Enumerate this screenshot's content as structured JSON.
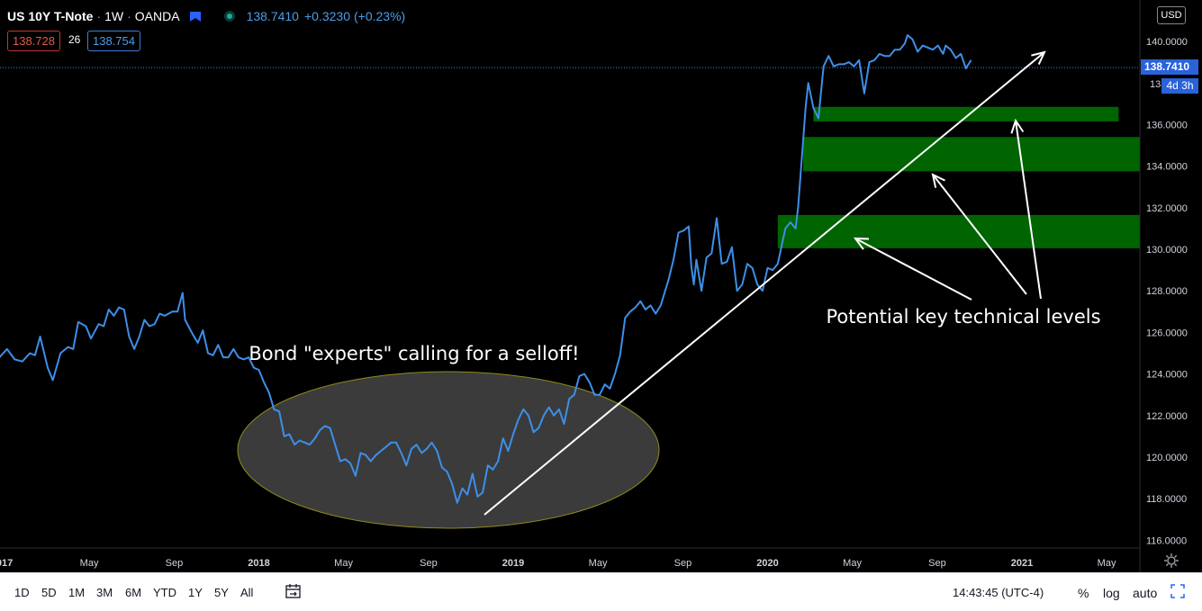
{
  "header": {
    "symbol": "US 10Y T-Note",
    "interval": "1W",
    "source": "OANDA",
    "last": "138.7410",
    "change": "+0.3230",
    "change_pct": "(+0.23%)",
    "sell": "138.728",
    "spread": "26",
    "buy": "138.754",
    "currency": "USD"
  },
  "price_scale": {
    "last_tag": "138.7410",
    "countdown": "4d 3h",
    "partial_label": "138"
  },
  "colors": {
    "line": "#3d8fe8",
    "zone": "#006400",
    "ellipse_fill": "#3b3b3b",
    "ellipse_stroke": "#8e8a1d",
    "arrow": "#ffffff"
  },
  "annotations": {
    "ellipse_text": "Bond \"experts\" calling for a selloff!",
    "levels_text": "Potential key technical levels"
  },
  "bottom_bar": {
    "timeframes": [
      "1D",
      "5D",
      "1M",
      "3M",
      "6M",
      "YTD",
      "1Y",
      "5Y",
      "All"
    ],
    "time": "14:43:45 (UTC-4)",
    "pct": "%",
    "log": "log",
    "auto": "auto"
  },
  "chart_data": {
    "type": "line",
    "title": "US 10Y T-Note · 1W · OANDA",
    "y_range": [
      115.5,
      141.5
    ],
    "y_ticks": [
      116,
      118,
      120,
      122,
      124,
      126,
      128,
      130,
      132,
      134,
      136,
      140
    ],
    "y_tick_labels": [
      "116.0000",
      "118.0000",
      "120.0000",
      "122.0000",
      "124.0000",
      "126.0000",
      "128.0000",
      "130.0000",
      "132.0000",
      "134.0000",
      "136.0000",
      "140.0000"
    ],
    "x_ticks": [
      {
        "t": 2017.0,
        "label": "017",
        "bold": true
      },
      {
        "t": 2017.333,
        "label": "May",
        "bold": false
      },
      {
        "t": 2017.667,
        "label": "Sep",
        "bold": false
      },
      {
        "t": 2018.0,
        "label": "2018",
        "bold": true
      },
      {
        "t": 2018.333,
        "label": "May",
        "bold": false
      },
      {
        "t": 2018.667,
        "label": "Sep",
        "bold": false
      },
      {
        "t": 2019.0,
        "label": "2019",
        "bold": true
      },
      {
        "t": 2019.333,
        "label": "May",
        "bold": false
      },
      {
        "t": 2019.667,
        "label": "Sep",
        "bold": false
      },
      {
        "t": 2020.0,
        "label": "2020",
        "bold": true
      },
      {
        "t": 2020.333,
        "label": "May",
        "bold": false
      },
      {
        "t": 2020.667,
        "label": "Sep",
        "bold": false
      },
      {
        "t": 2021.0,
        "label": "2021",
        "bold": true
      },
      {
        "t": 2021.333,
        "label": "May",
        "bold": false
      }
    ],
    "series": [
      {
        "points": [
          [
            2016.98,
            124.8
          ],
          [
            2017.01,
            125.2
          ],
          [
            2017.04,
            124.7
          ],
          [
            2017.07,
            124.6
          ],
          [
            2017.1,
            125.0
          ],
          [
            2017.12,
            124.9
          ],
          [
            2017.14,
            125.8
          ],
          [
            2017.17,
            124.3
          ],
          [
            2017.19,
            123.7
          ],
          [
            2017.22,
            125.0
          ],
          [
            2017.25,
            125.3
          ],
          [
            2017.27,
            125.2
          ],
          [
            2017.29,
            126.5
          ],
          [
            2017.32,
            126.3
          ],
          [
            2017.34,
            125.7
          ],
          [
            2017.37,
            126.4
          ],
          [
            2017.39,
            126.3
          ],
          [
            2017.41,
            127.1
          ],
          [
            2017.43,
            126.8
          ],
          [
            2017.45,
            127.2
          ],
          [
            2017.47,
            127.1
          ],
          [
            2017.49,
            125.8
          ],
          [
            2017.51,
            125.2
          ],
          [
            2017.53,
            125.8
          ],
          [
            2017.55,
            126.6
          ],
          [
            2017.57,
            126.3
          ],
          [
            2017.59,
            126.4
          ],
          [
            2017.61,
            126.9
          ],
          [
            2017.63,
            126.8
          ],
          [
            2017.66,
            127.0
          ],
          [
            2017.68,
            127.0
          ],
          [
            2017.7,
            127.9
          ],
          [
            2017.71,
            126.6
          ],
          [
            2017.74,
            125.9
          ],
          [
            2017.76,
            125.5
          ],
          [
            2017.78,
            126.1
          ],
          [
            2017.8,
            125.0
          ],
          [
            2017.82,
            124.9
          ],
          [
            2017.84,
            125.4
          ],
          [
            2017.86,
            124.8
          ],
          [
            2017.88,
            124.8
          ],
          [
            2017.9,
            125.2
          ],
          [
            2017.92,
            124.8
          ],
          [
            2017.94,
            124.7
          ],
          [
            2017.96,
            124.8
          ],
          [
            2017.98,
            124.3
          ],
          [
            2018.0,
            124.2
          ],
          [
            2018.02,
            123.6
          ],
          [
            2018.04,
            123.1
          ],
          [
            2018.06,
            122.3
          ],
          [
            2018.08,
            122.2
          ],
          [
            2018.1,
            121.0
          ],
          [
            2018.12,
            121.1
          ],
          [
            2018.14,
            120.6
          ],
          [
            2018.16,
            120.8
          ],
          [
            2018.18,
            120.7
          ],
          [
            2018.2,
            120.6
          ],
          [
            2018.22,
            120.9
          ],
          [
            2018.24,
            121.3
          ],
          [
            2018.26,
            121.5
          ],
          [
            2018.28,
            121.4
          ],
          [
            2018.3,
            120.6
          ],
          [
            2018.32,
            119.8
          ],
          [
            2018.34,
            119.9
          ],
          [
            2018.36,
            119.7
          ],
          [
            2018.38,
            119.1
          ],
          [
            2018.4,
            120.2
          ],
          [
            2018.42,
            120.1
          ],
          [
            2018.44,
            119.8
          ],
          [
            2018.46,
            120.1
          ],
          [
            2018.48,
            120.3
          ],
          [
            2018.5,
            120.5
          ],
          [
            2018.52,
            120.7
          ],
          [
            2018.54,
            120.7
          ],
          [
            2018.56,
            120.2
          ],
          [
            2018.58,
            119.6
          ],
          [
            2018.6,
            120.4
          ],
          [
            2018.62,
            120.6
          ],
          [
            2018.64,
            120.2
          ],
          [
            2018.66,
            120.4
          ],
          [
            2018.68,
            120.7
          ],
          [
            2018.7,
            120.3
          ],
          [
            2018.72,
            119.5
          ],
          [
            2018.74,
            119.3
          ],
          [
            2018.76,
            118.7
          ],
          [
            2018.78,
            117.8
          ],
          [
            2018.8,
            118.5
          ],
          [
            2018.82,
            118.2
          ],
          [
            2018.84,
            119.2
          ],
          [
            2018.86,
            118.1
          ],
          [
            2018.88,
            118.3
          ],
          [
            2018.9,
            119.6
          ],
          [
            2018.92,
            119.4
          ],
          [
            2018.94,
            119.8
          ],
          [
            2018.96,
            120.9
          ],
          [
            2018.98,
            120.3
          ],
          [
            2019.0,
            121.1
          ],
          [
            2019.02,
            121.8
          ],
          [
            2019.04,
            122.3
          ],
          [
            2019.06,
            122.0
          ],
          [
            2019.08,
            121.2
          ],
          [
            2019.1,
            121.4
          ],
          [
            2019.12,
            122.0
          ],
          [
            2019.14,
            122.4
          ],
          [
            2019.16,
            122.0
          ],
          [
            2019.18,
            122.3
          ],
          [
            2019.2,
            121.6
          ],
          [
            2019.22,
            122.8
          ],
          [
            2019.24,
            123.0
          ],
          [
            2019.26,
            123.9
          ],
          [
            2019.28,
            124.0
          ],
          [
            2019.3,
            123.6
          ],
          [
            2019.32,
            123.0
          ],
          [
            2019.34,
            123.0
          ],
          [
            2019.36,
            123.5
          ],
          [
            2019.38,
            123.3
          ],
          [
            2019.4,
            124.0
          ],
          [
            2019.42,
            124.9
          ],
          [
            2019.44,
            126.7
          ],
          [
            2019.46,
            127.0
          ],
          [
            2019.48,
            127.2
          ],
          [
            2019.5,
            127.5
          ],
          [
            2019.52,
            127.1
          ],
          [
            2019.54,
            127.3
          ],
          [
            2019.56,
            126.9
          ],
          [
            2019.58,
            127.3
          ],
          [
            2019.61,
            128.5
          ],
          [
            2019.63,
            129.5
          ],
          [
            2019.65,
            130.8
          ],
          [
            2019.67,
            130.9
          ],
          [
            2019.69,
            131.1
          ],
          [
            2019.7,
            129.2
          ],
          [
            2019.71,
            128.3
          ],
          [
            2019.72,
            129.5
          ],
          [
            2019.74,
            128.0
          ],
          [
            2019.76,
            129.6
          ],
          [
            2019.78,
            129.8
          ],
          [
            2019.8,
            131.5
          ],
          [
            2019.82,
            129.3
          ],
          [
            2019.84,
            129.4
          ],
          [
            2019.86,
            130.1
          ],
          [
            2019.88,
            128.0
          ],
          [
            2019.9,
            128.3
          ],
          [
            2019.92,
            129.3
          ],
          [
            2019.94,
            129.1
          ],
          [
            2019.96,
            128.3
          ],
          [
            2019.98,
            128.0
          ],
          [
            2020.0,
            129.1
          ],
          [
            2020.02,
            129.0
          ],
          [
            2020.04,
            129.3
          ],
          [
            2020.07,
            131.0
          ],
          [
            2020.09,
            131.3
          ],
          [
            2020.11,
            131.0
          ],
          [
            2020.12,
            132.0
          ],
          [
            2020.15,
            136.9
          ],
          [
            2020.16,
            138.0
          ],
          [
            2020.18,
            136.8
          ],
          [
            2020.2,
            136.3
          ],
          [
            2020.22,
            138.8
          ],
          [
            2020.24,
            139.3
          ],
          [
            2020.26,
            138.8
          ],
          [
            2020.28,
            138.9
          ],
          [
            2020.3,
            138.9
          ],
          [
            2020.32,
            139.0
          ],
          [
            2020.34,
            138.8
          ],
          [
            2020.36,
            139.1
          ],
          [
            2020.38,
            137.5
          ],
          [
            2020.4,
            139.0
          ],
          [
            2020.42,
            139.1
          ],
          [
            2020.44,
            139.4
          ],
          [
            2020.46,
            139.3
          ],
          [
            2020.48,
            139.3
          ],
          [
            2020.5,
            139.6
          ],
          [
            2020.52,
            139.6
          ],
          [
            2020.54,
            139.9
          ],
          [
            2020.55,
            140.3
          ],
          [
            2020.57,
            140.1
          ],
          [
            2020.59,
            139.5
          ],
          [
            2020.61,
            139.8
          ],
          [
            2020.63,
            139.7
          ],
          [
            2020.65,
            139.6
          ],
          [
            2020.67,
            139.8
          ],
          [
            2020.69,
            139.4
          ],
          [
            2020.7,
            139.8
          ],
          [
            2020.72,
            139.6
          ],
          [
            2020.74,
            139.2
          ],
          [
            2020.76,
            139.4
          ],
          [
            2020.78,
            138.7
          ],
          [
            2020.8,
            139.1
          ]
        ]
      }
    ],
    "zones": [
      {
        "t_start": 2020.18,
        "t_end": 2021.38,
        "y_low": 136.15,
        "y_high": 136.85
      },
      {
        "t_start": 2020.14,
        "t_end": 2021.5,
        "y_low": 133.75,
        "y_high": 135.4
      },
      {
        "t_start": 2020.04,
        "t_end": 2021.5,
        "y_low": 130.05,
        "y_high": 131.65
      }
    ],
    "last_price": 138.741,
    "grid": false,
    "legend": "none"
  }
}
